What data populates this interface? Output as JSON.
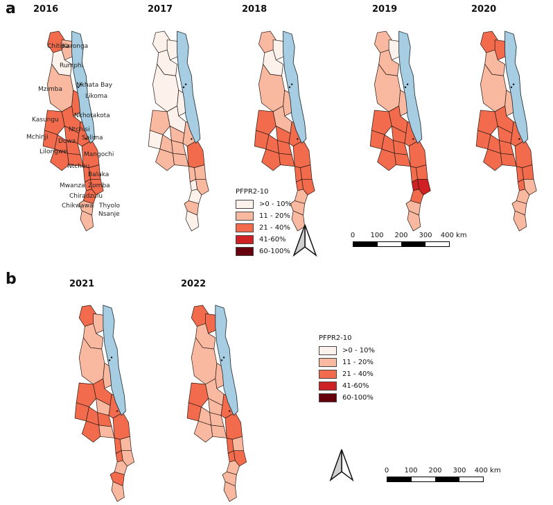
{
  "panels": {
    "a": {
      "letter": "a",
      "years": [
        "2016",
        "2017",
        "2018",
        "2019",
        "2020"
      ]
    },
    "b": {
      "letter": "b",
      "years": [
        "2021",
        "2022"
      ]
    }
  },
  "district_labels": [
    "Chitipa",
    "Karonga",
    "Rumphi",
    "Mzimba",
    "Nkhata Bay",
    "Likoma",
    "Nkhotakota",
    "Kasungu",
    "Ntchisi",
    "Mchinji",
    "Dowa",
    "Salima",
    "Lilongwe",
    "Mangochi",
    "Ntcheu",
    "Balaka",
    "Mwanza",
    "Zomba",
    "Chiradzulu",
    "Chikwawa",
    "Thyolo",
    "Nsanje"
  ],
  "legend": {
    "title": "PFPR2-10",
    "classes": [
      {
        "label": ">0 - 10%",
        "color": "#fdf1ec"
      },
      {
        "label": "11 - 20%",
        "color": "#f8b9a0"
      },
      {
        "label": "21 - 40%",
        "color": "#f26b4c"
      },
      {
        "label": "41-60%",
        "color": "#cf2124"
      },
      {
        "label": "60-100%",
        "color": "#67000d"
      }
    ]
  },
  "scale": {
    "labels": [
      "0",
      "100",
      "200",
      "300",
      "400 km"
    ]
  },
  "lake_color": "#a6cde2"
}
